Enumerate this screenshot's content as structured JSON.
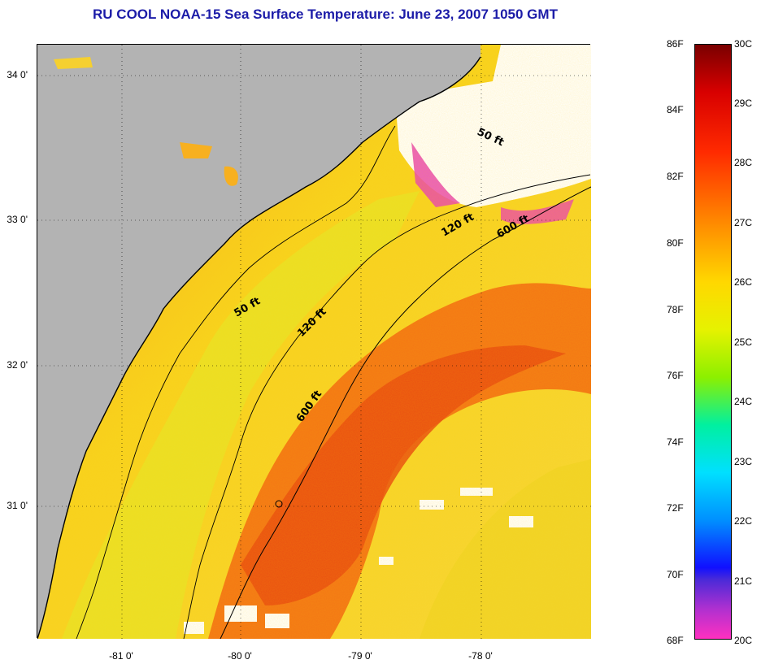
{
  "title": "RU COOL  NOAA-15  Sea Surface Temperature:  June 23, 2007 1050 GMT",
  "map": {
    "lat_labels": [
      "34 0'",
      "33 0'",
      "32 0'",
      "31 0'"
    ],
    "lon_labels": [
      "-81 0'",
      "-80 0'",
      "-79 0'",
      "-78 0'"
    ],
    "contour_labels": [
      {
        "id": "isobath-50ft-south",
        "text": "50 ft"
      },
      {
        "id": "isobath-50ft-north",
        "text": "50 ft"
      },
      {
        "id": "isobath-120ft-south",
        "text": "120 ft"
      },
      {
        "id": "isobath-120ft-north",
        "text": "120 ft"
      },
      {
        "id": "isobath-600ft-south",
        "text": "600 ft"
      },
      {
        "id": "isobath-600ft-north",
        "text": "600 ft"
      }
    ],
    "colors": {
      "land": "#b3b3b3",
      "cloud": "#ffffff",
      "warm_core": "#f05a14",
      "shelf": "#f6d31c"
    }
  },
  "colorbar": {
    "fahrenheit_labels": [
      "86F",
      "84F",
      "82F",
      "80F",
      "78F",
      "76F",
      "74F",
      "72F",
      "70F",
      "68F"
    ],
    "celsius_labels": [
      "30C",
      "29C",
      "28C",
      "27C",
      "26C",
      "25C",
      "24C",
      "23C",
      "22C",
      "21C",
      "20C"
    ],
    "range_f": [
      68,
      86
    ],
    "range_c": [
      20,
      30
    ]
  }
}
